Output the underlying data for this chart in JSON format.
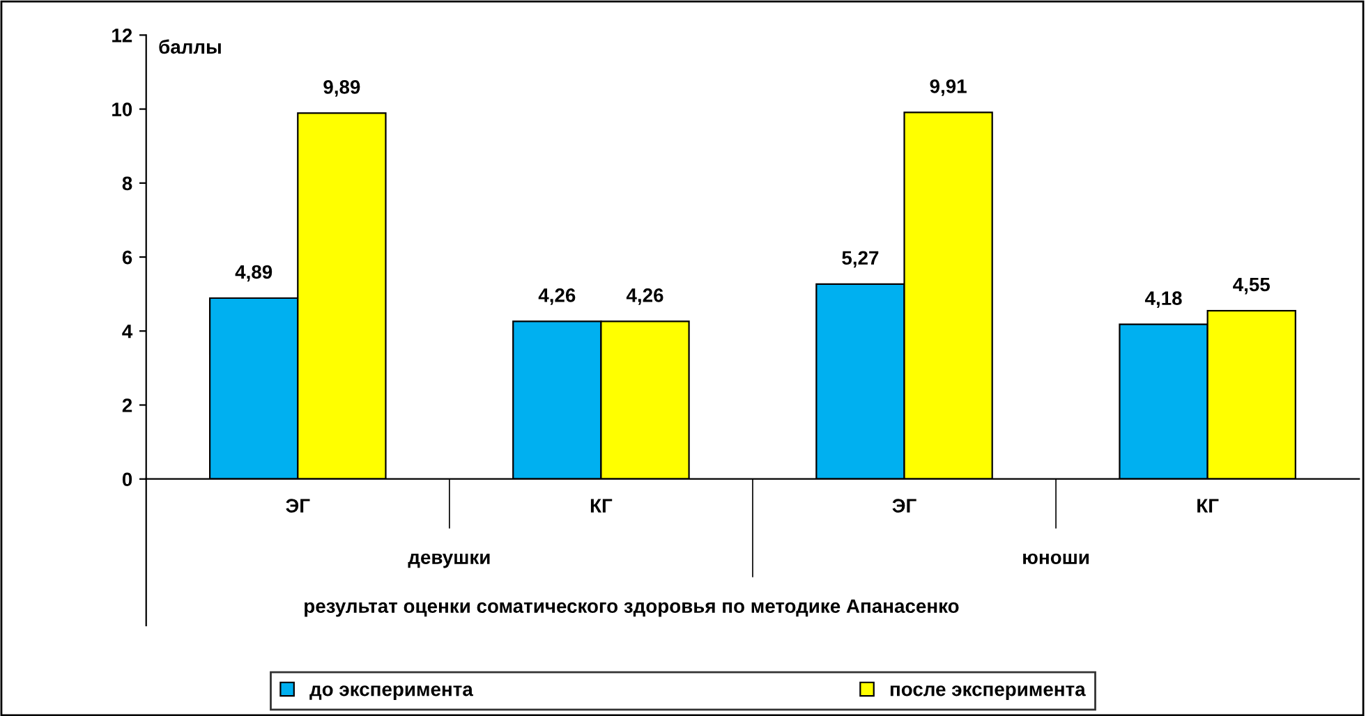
{
  "chart_data": {
    "type": "bar",
    "ylabel": "баллы",
    "xlabel": "результат оценки соматического здоровья по методике Апанасенко",
    "categories": [
      "ЭГ",
      "КГ",
      "ЭГ",
      "КГ"
    ],
    "series": [
      {
        "name": "до эксперимента",
        "color": "#00b0f0",
        "values": [
          4.89,
          4.26,
          5.27,
          4.18
        ],
        "value_labels": [
          "4,89",
          "4,26",
          "5,27",
          "4,18"
        ]
      },
      {
        "name": "после эксперимента",
        "color": "#ffff00",
        "values": [
          9.89,
          4.26,
          9.91,
          4.55
        ],
        "value_labels": [
          "9,89",
          "4,26",
          "9,91",
          "4,55"
        ]
      }
    ],
    "annotations": [
      "девушки",
      "юноши"
    ],
    "ylim": [
      0,
      12
    ],
    "yticks": [
      0,
      2,
      4,
      6,
      8,
      10,
      12
    ],
    "grid": false,
    "legend": "bottom"
  }
}
